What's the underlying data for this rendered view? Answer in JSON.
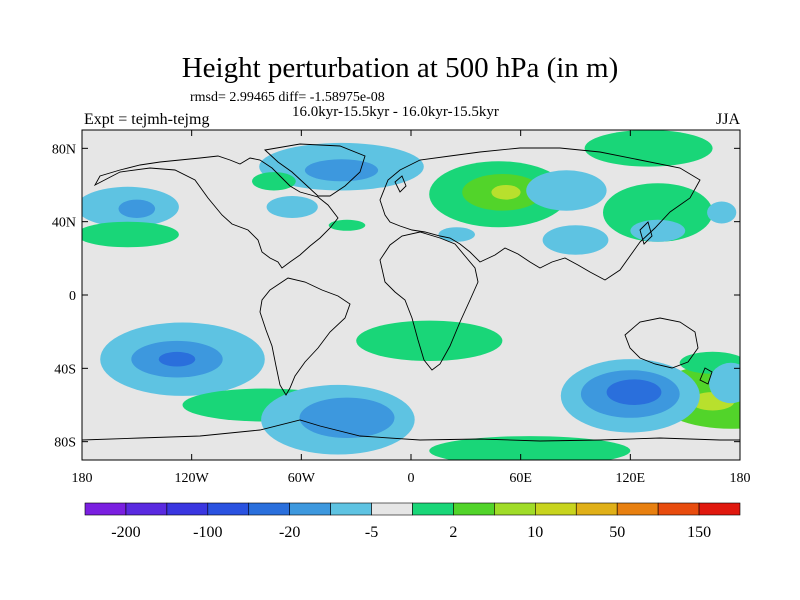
{
  "header": {
    "title": "Height perturbation at 500 hPa (in m)",
    "stats": "rmsd= 2.99465 diff= -1.58975e-08",
    "periods": "16.0kyr-15.5kyr - 16.0kyr-15.5kyr",
    "experiment": "Expt = tejmh-tejmg",
    "season": "JJA"
  },
  "colors": {
    "background": "#e6e6e6",
    "neg_strong": "#2a6fdc",
    "neg_mid": "#3d98de",
    "neg_weak": "#5ec3e2",
    "pos_weak": "#19d678",
    "pos_mid": "#52d42a",
    "pos_strong": "#b8e02d"
  },
  "chart_data": {
    "type": "heatmap",
    "projection": "cylindrical equidistant",
    "title": "Height perturbation at 500 hPa (in m)",
    "xlabel": "",
    "ylabel": "",
    "xlim": [
      -180,
      180
    ],
    "ylim": [
      -90,
      90
    ],
    "x_ticks": [
      {
        "value": -180,
        "label": "180"
      },
      {
        "value": -120,
        "label": "120W"
      },
      {
        "value": -60,
        "label": "60W"
      },
      {
        "value": 0,
        "label": "0"
      },
      {
        "value": 60,
        "label": "60E"
      },
      {
        "value": 120,
        "label": "120E"
      },
      {
        "value": 180,
        "label": "180"
      }
    ],
    "y_ticks": [
      {
        "value": 80,
        "label": "80N"
      },
      {
        "value": 40,
        "label": "40N"
      },
      {
        "value": 0,
        "label": "0"
      },
      {
        "value": -40,
        "label": "40S"
      },
      {
        "value": -80,
        "label": "80S"
      }
    ],
    "colorbar": {
      "colors": [
        "#7a1fe0",
        "#5a2ae0",
        "#3a36e0",
        "#2a52e0",
        "#2a6fdc",
        "#3d98de",
        "#5ec3e2",
        "#e6e6e6",
        "#19d678",
        "#52d42a",
        "#a0dc28",
        "#c8d41e",
        "#e0b018",
        "#e88010",
        "#e84c0e",
        "#e0180e"
      ],
      "labels": [
        {
          "after": 1,
          "text": "-200"
        },
        {
          "after": 3,
          "text": "-100"
        },
        {
          "after": 5,
          "text": "-20"
        },
        {
          "after": 7,
          "text": "-5"
        },
        {
          "after": 9,
          "text": "2"
        },
        {
          "after": 11,
          "text": "10"
        },
        {
          "after": 13,
          "text": "50"
        },
        {
          "after": 15,
          "text": "150"
        }
      ]
    },
    "anomalies": [
      {
        "lon": 175,
        "lat": -55,
        "rx": 42,
        "ry": 18,
        "level": "pos_mid"
      },
      {
        "lon": 165,
        "lat": -58,
        "rx": 12,
        "ry": 5,
        "level": "pos_strong"
      },
      {
        "lon": -125,
        "lat": -35,
        "rx": 45,
        "ry": 20,
        "level": "neg_weak"
      },
      {
        "lon": -128,
        "lat": -35,
        "rx": 25,
        "ry": 10,
        "level": "neg_mid"
      },
      {
        "lon": -128,
        "lat": -35,
        "rx": 10,
        "ry": 4,
        "level": "neg_strong"
      },
      {
        "lon": -80,
        "lat": -60,
        "rx": 45,
        "ry": 9,
        "level": "pos_weak"
      },
      {
        "lon": -40,
        "lat": -68,
        "rx": 42,
        "ry": 19,
        "level": "neg_weak"
      },
      {
        "lon": -35,
        "lat": -67,
        "rx": 26,
        "ry": 11,
        "level": "neg_mid"
      },
      {
        "lon": 10,
        "lat": -25,
        "rx": 40,
        "ry": 11,
        "level": "pos_weak"
      },
      {
        "lon": 120,
        "lat": -55,
        "rx": 38,
        "ry": 20,
        "level": "neg_weak"
      },
      {
        "lon": 120,
        "lat": -54,
        "rx": 27,
        "ry": 13,
        "level": "neg_mid"
      },
      {
        "lon": 122,
        "lat": -53,
        "rx": 15,
        "ry": 7,
        "level": "neg_strong"
      },
      {
        "lon": 165,
        "lat": -37,
        "rx": 18,
        "ry": 6,
        "level": "pos_weak"
      },
      {
        "lon": 175,
        "lat": -48,
        "rx": 12,
        "ry": 11,
        "level": "neg_weak"
      },
      {
        "lon": 65,
        "lat": -85,
        "rx": 55,
        "ry": 8,
        "level": "pos_weak"
      },
      {
        "lon": -38,
        "lat": 70,
        "rx": 45,
        "ry": 13,
        "level": "neg_weak"
      },
      {
        "lon": -38,
        "lat": 68,
        "rx": 20,
        "ry": 6,
        "level": "neg_mid"
      },
      {
        "lon": 48,
        "lat": 55,
        "rx": 38,
        "ry": 18,
        "level": "pos_weak"
      },
      {
        "lon": 50,
        "lat": 56,
        "rx": 22,
        "ry": 10,
        "level": "pos_mid"
      },
      {
        "lon": 52,
        "lat": 56,
        "rx": 8,
        "ry": 4,
        "level": "pos_strong"
      },
      {
        "lon": -155,
        "lat": 48,
        "rx": 28,
        "ry": 11,
        "level": "neg_weak"
      },
      {
        "lon": -150,
        "lat": 47,
        "rx": 10,
        "ry": 5,
        "level": "neg_mid"
      },
      {
        "lon": -155,
        "lat": 33,
        "rx": 28,
        "ry": 7,
        "level": "pos_weak"
      },
      {
        "lon": -75,
        "lat": 62,
        "rx": 12,
        "ry": 5,
        "level": "pos_weak"
      },
      {
        "lon": -65,
        "lat": 48,
        "rx": 14,
        "ry": 6,
        "level": "neg_weak"
      },
      {
        "lon": -35,
        "lat": 38,
        "rx": 10,
        "ry": 3,
        "level": "pos_weak"
      },
      {
        "lon": 130,
        "lat": 80,
        "rx": 35,
        "ry": 10,
        "level": "pos_weak"
      },
      {
        "lon": 85,
        "lat": 57,
        "rx": 22,
        "ry": 11,
        "level": "neg_weak"
      },
      {
        "lon": 135,
        "lat": 45,
        "rx": 30,
        "ry": 16,
        "level": "pos_weak"
      },
      {
        "lon": 90,
        "lat": 30,
        "rx": 18,
        "ry": 8,
        "level": "neg_weak"
      },
      {
        "lon": 135,
        "lat": 35,
        "rx": 15,
        "ry": 6,
        "level": "neg_weak"
      },
      {
        "lon": 170,
        "lat": 45,
        "rx": 8,
        "ry": 6,
        "level": "neg_weak"
      },
      {
        "lon": 25,
        "lat": 33,
        "rx": 10,
        "ry": 4,
        "level": "neg_weak"
      }
    ]
  }
}
